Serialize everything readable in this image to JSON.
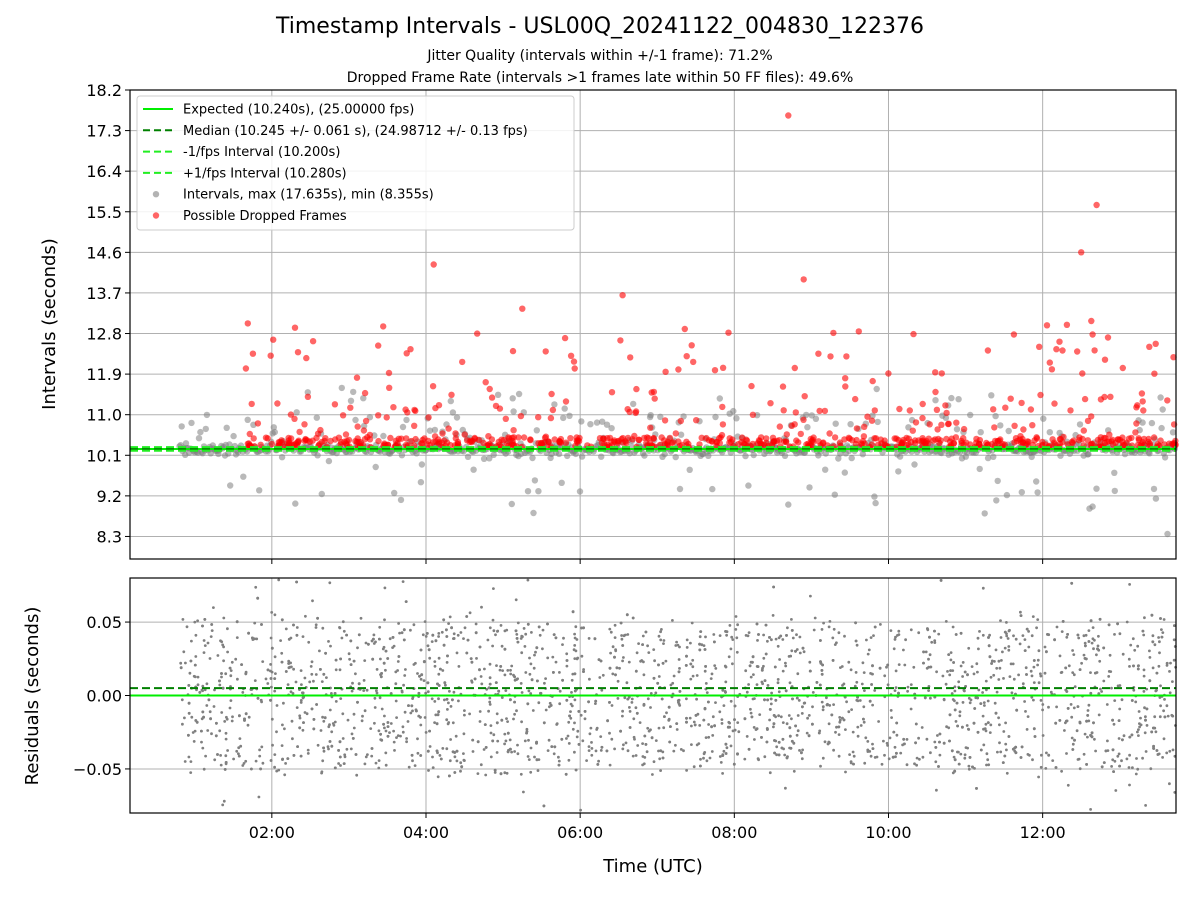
{
  "chart_data": [
    {
      "type": "scatter",
      "title": "Timestamp Intervals - USL00Q_20241122_004830_122376",
      "subtitle_lines": [
        "Jitter Quality (intervals within +/-1 frame): 71.2%",
        "Dropped Frame Rate (intervals >1 frames late within 50 FF files): 49.6%"
      ],
      "xlabel": "",
      "ylabel": "Intervals (seconds)",
      "xlim_hours": [
        0.16,
        13.73
      ],
      "ylim": [
        7.8,
        18.2
      ],
      "yticks": [
        8.3,
        9.2,
        10.1,
        11.0,
        11.9,
        12.8,
        13.7,
        14.6,
        15.5,
        16.4,
        17.3,
        18.2
      ],
      "ytick_labels": [
        "8.3",
        "9.2",
        "10.1",
        "11.0",
        "11.9",
        "12.8",
        "13.7",
        "14.6",
        "15.5",
        "16.4",
        "17.3",
        "18.2"
      ],
      "grid": true,
      "legend_position": "top-left",
      "lines": [
        {
          "name": "Expected (10.240s), (25.00000 fps)",
          "y": 10.24,
          "style": "solid",
          "color": "#00ee00"
        },
        {
          "name": "Median (10.245 +/- 0.061 s), (24.98712 +/- 0.13 fps)",
          "y": 10.245,
          "style": "dashed",
          "color": "#008000"
        },
        {
          "name": "-1/fps Interval (10.200s)",
          "y": 10.2,
          "style": "dashed",
          "color": "#22ee22"
        },
        {
          "name": "+1/fps Interval (10.280s)",
          "y": 10.28,
          "style": "dashed",
          "color": "#22ee22"
        }
      ],
      "series": [
        {
          "name": "Intervals, max (17.635s), min (8.355s)",
          "color": "#808080",
          "max": 17.635,
          "min": 8.355
        },
        {
          "name": "Possible Dropped Frames",
          "color": "#ff0000",
          "highlight_points": [
            [
              4.1,
              14.33
            ],
            [
              8.7,
              17.635
            ],
            [
              12.5,
              14.6
            ],
            [
              12.7,
              15.65
            ],
            [
              6.55,
              13.65
            ],
            [
              5.25,
              13.35
            ],
            [
              8.9,
              14.0
            ]
          ]
        }
      ],
      "x_start_hours": 0.8,
      "x_end_hours": 13.73
    },
    {
      "type": "scatter",
      "ylabel": "Residuals (seconds)",
      "xlabel": "Time (UTC)",
      "xlim_hours": [
        0.16,
        13.73
      ],
      "ylim": [
        -0.08,
        0.08
      ],
      "yticks": [
        -0.05,
        0.0,
        0.05
      ],
      "ytick_labels": [
        "−0.05",
        "0.00",
        "0.05"
      ],
      "xticks_hours": [
        2,
        4,
        6,
        8,
        10,
        12
      ],
      "xtick_labels": [
        "02:00",
        "04:00",
        "06:00",
        "08:00",
        "10:00",
        "12:00"
      ],
      "grid": true,
      "lines": [
        {
          "y": 0.0,
          "style": "solid",
          "color": "#00ee00"
        },
        {
          "y": 0.005,
          "style": "dashed",
          "color": "#008000"
        }
      ],
      "series": [
        {
          "color": "#808080",
          "point_count": 2600,
          "levels": [
            -0.04,
            -0.02,
            0.0,
            0.02,
            0.04
          ]
        }
      ]
    }
  ]
}
